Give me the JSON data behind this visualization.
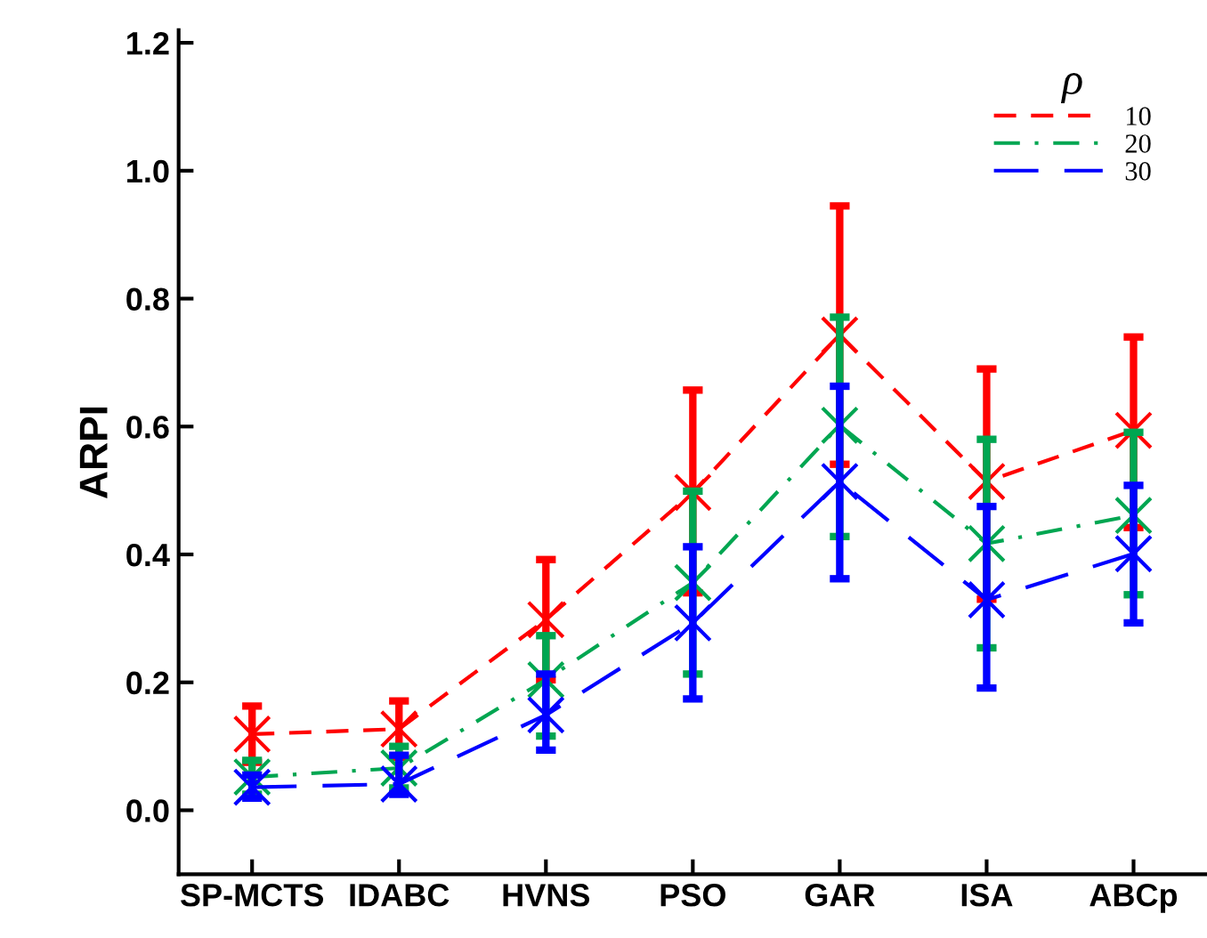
{
  "chart_data": {
    "type": "line",
    "ylabel": "ARPI",
    "legend_title": "ρ",
    "legend": "top right",
    "marker": "cross",
    "grid": false,
    "categories": [
      "SP-MCTS",
      "IDABC",
      "HVNS",
      "PSO",
      "GAR",
      "ISA",
      "ABCp"
    ],
    "ylim": [
      -0.1,
      1.22
    ],
    "yticks": [
      {
        "value": 0,
        "label": "0.0"
      },
      0.2,
      0.4,
      0.6,
      0.8,
      {
        "value": 1,
        "label": "1.0"
      },
      1.2
    ],
    "series": [
      {
        "name": "10",
        "color": "#ff0000",
        "line_style": "dashed",
        "values": [
          0.119,
          0.127,
          0.298,
          0.497,
          0.743,
          0.514,
          0.594
        ],
        "errors": [
          [
            0.075,
            0.163
          ],
          [
            0.083,
            0.171
          ],
          [
            0.204,
            0.392
          ],
          [
            0.34,
            0.657
          ],
          [
            0.541,
            0.945
          ],
          [
            0.33,
            0.69
          ],
          [
            0.442,
            0.74
          ]
        ]
      },
      {
        "name": "20",
        "color": "#00a651",
        "line_style": "dashdot",
        "values": [
          0.052,
          0.066,
          0.204,
          0.356,
          0.602,
          0.417,
          0.461
        ],
        "errors": [
          [
            0.025,
            0.078
          ],
          [
            0.035,
            0.1
          ],
          [
            0.116,
            0.273
          ],
          [
            0.213,
            0.499
          ],
          [
            0.428,
            0.771
          ],
          [
            0.254,
            0.58
          ],
          [
            0.337,
            0.591
          ]
        ]
      },
      {
        "name": "30",
        "color": "#0000ff",
        "line_style": "longdash",
        "values": [
          0.036,
          0.041,
          0.149,
          0.293,
          0.514,
          0.329,
          0.401
        ],
        "errors": [
          [
            0.019,
            0.055
          ],
          [
            0.025,
            0.086
          ],
          [
            0.094,
            0.213
          ],
          [
            0.174,
            0.412
          ],
          [
            0.362,
            0.663
          ],
          [
            0.191,
            0.475
          ],
          [
            0.293,
            0.508
          ]
        ]
      }
    ]
  }
}
